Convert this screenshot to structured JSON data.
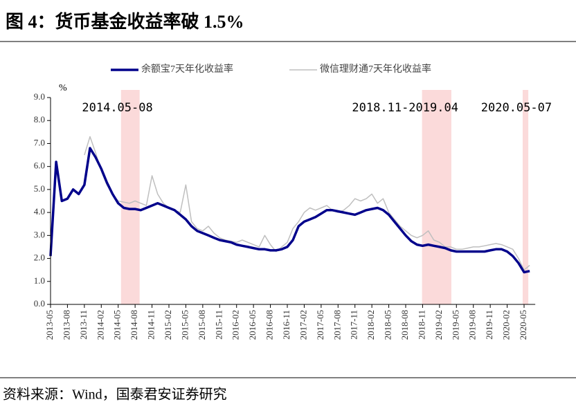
{
  "chart_data": {
    "type": "line",
    "title": "图 4：货币基金收益率破 1.5%",
    "source": "资料来源：Wind，国泰君安证券研究",
    "ylabel": "%",
    "categories": [
      "2013-05",
      null,
      null,
      "2013-08",
      null,
      null,
      "2013-11",
      null,
      null,
      "2014-02",
      null,
      null,
      "2014-05",
      null,
      null,
      "2014-08",
      null,
      null,
      "2014-11",
      null,
      null,
      "2015-02",
      null,
      null,
      "2015-05",
      null,
      null,
      "2015-08",
      null,
      null,
      "2015-11",
      null,
      null,
      "2016-02",
      null,
      null,
      "2016-05",
      null,
      null,
      "2016-08",
      null,
      null,
      "2016-11",
      null,
      null,
      "2017-02",
      null,
      null,
      "2017-05",
      null,
      null,
      "2017-08",
      null,
      null,
      "2017-11",
      null,
      null,
      "2018-02",
      null,
      null,
      "2018-05",
      null,
      null,
      "2018-08",
      null,
      null,
      "2018-11",
      null,
      null,
      "2019-02",
      null,
      null,
      "2019-05",
      null,
      null,
      "2019-08",
      null,
      null,
      "2019-11",
      null,
      null,
      "2020-02",
      null,
      null,
      "2020-05",
      null
    ],
    "series": [
      {
        "name": "余额宝7天年化收益率",
        "color": "#00008b",
        "values": [
          2.1,
          6.2,
          4.5,
          4.6,
          5.0,
          4.8,
          5.2,
          6.8,
          6.4,
          5.9,
          5.3,
          4.8,
          4.4,
          4.2,
          4.15,
          4.15,
          4.1,
          4.2,
          4.3,
          4.4,
          4.3,
          4.2,
          4.1,
          3.9,
          3.7,
          3.4,
          3.2,
          3.1,
          3.0,
          2.9,
          2.8,
          2.75,
          2.7,
          2.6,
          2.55,
          2.5,
          2.45,
          2.4,
          2.4,
          2.35,
          2.35,
          2.4,
          2.5,
          2.8,
          3.4,
          3.6,
          3.7,
          3.8,
          3.95,
          4.1,
          4.1,
          4.05,
          4.0,
          3.95,
          3.9,
          4.0,
          4.1,
          4.15,
          4.2,
          4.1,
          3.9,
          3.6,
          3.3,
          3.0,
          2.75,
          2.6,
          2.55,
          2.6,
          2.55,
          2.5,
          2.45,
          2.35,
          2.3,
          2.3,
          2.3,
          2.3,
          2.3,
          2.3,
          2.35,
          2.4,
          2.4,
          2.3,
          2.1,
          1.8,
          1.4,
          1.45
        ]
      },
      {
        "name": "微信理财通7天年化收益率",
        "color": "#bfbfbf",
        "values": [
          null,
          null,
          null,
          null,
          null,
          null,
          6.5,
          7.3,
          6.6,
          5.8,
          5.2,
          4.8,
          4.5,
          4.45,
          4.4,
          4.5,
          4.4,
          4.3,
          5.6,
          4.8,
          4.4,
          4.2,
          4.1,
          4.0,
          5.2,
          3.6,
          3.3,
          3.2,
          3.4,
          3.1,
          2.9,
          2.8,
          2.75,
          2.7,
          2.8,
          2.7,
          2.6,
          2.5,
          3.0,
          2.6,
          2.3,
          2.5,
          2.7,
          3.3,
          3.6,
          4.0,
          4.2,
          4.1,
          4.2,
          4.3,
          4.1,
          4.0,
          4.1,
          4.3,
          4.6,
          4.5,
          4.6,
          4.8,
          4.4,
          4.6,
          4.0,
          3.7,
          3.4,
          3.2,
          3.0,
          2.9,
          3.0,
          3.2,
          2.8,
          2.7,
          2.5,
          2.5,
          2.4,
          2.4,
          2.45,
          2.5,
          2.5,
          2.55,
          2.6,
          2.65,
          2.6,
          2.5,
          2.4,
          2.0,
          1.5,
          1.7
        ]
      }
    ],
    "highlights": [
      {
        "label": "2014.05-08",
        "start": 12.5,
        "end": 15.8
      },
      {
        "label": "2018.11-2019.04",
        "start": 65.9,
        "end": 71.1
      },
      {
        "label": "2020.05-07",
        "start": 83.75,
        "end": 84.75
      }
    ],
    "highlight_color": "#fbdada",
    "highlight_label_color": "#c00000",
    "ylim": [
      0,
      9
    ],
    "yticks": [
      {
        "value": 0,
        "label": "0.0"
      },
      {
        "value": 1,
        "label": "1.0"
      },
      {
        "value": 2,
        "label": "2.0"
      },
      {
        "value": 3,
        "label": "3.0"
      },
      {
        "value": 4,
        "label": "4.0"
      },
      {
        "value": 5,
        "label": "5.0"
      },
      {
        "value": 6,
        "label": "6.0"
      },
      {
        "value": 7,
        "label": "7.0"
      },
      {
        "value": 8,
        "label": "8.0"
      },
      {
        "value": 9,
        "label": "9.0"
      }
    ],
    "grid": false,
    "legend": "top"
  }
}
